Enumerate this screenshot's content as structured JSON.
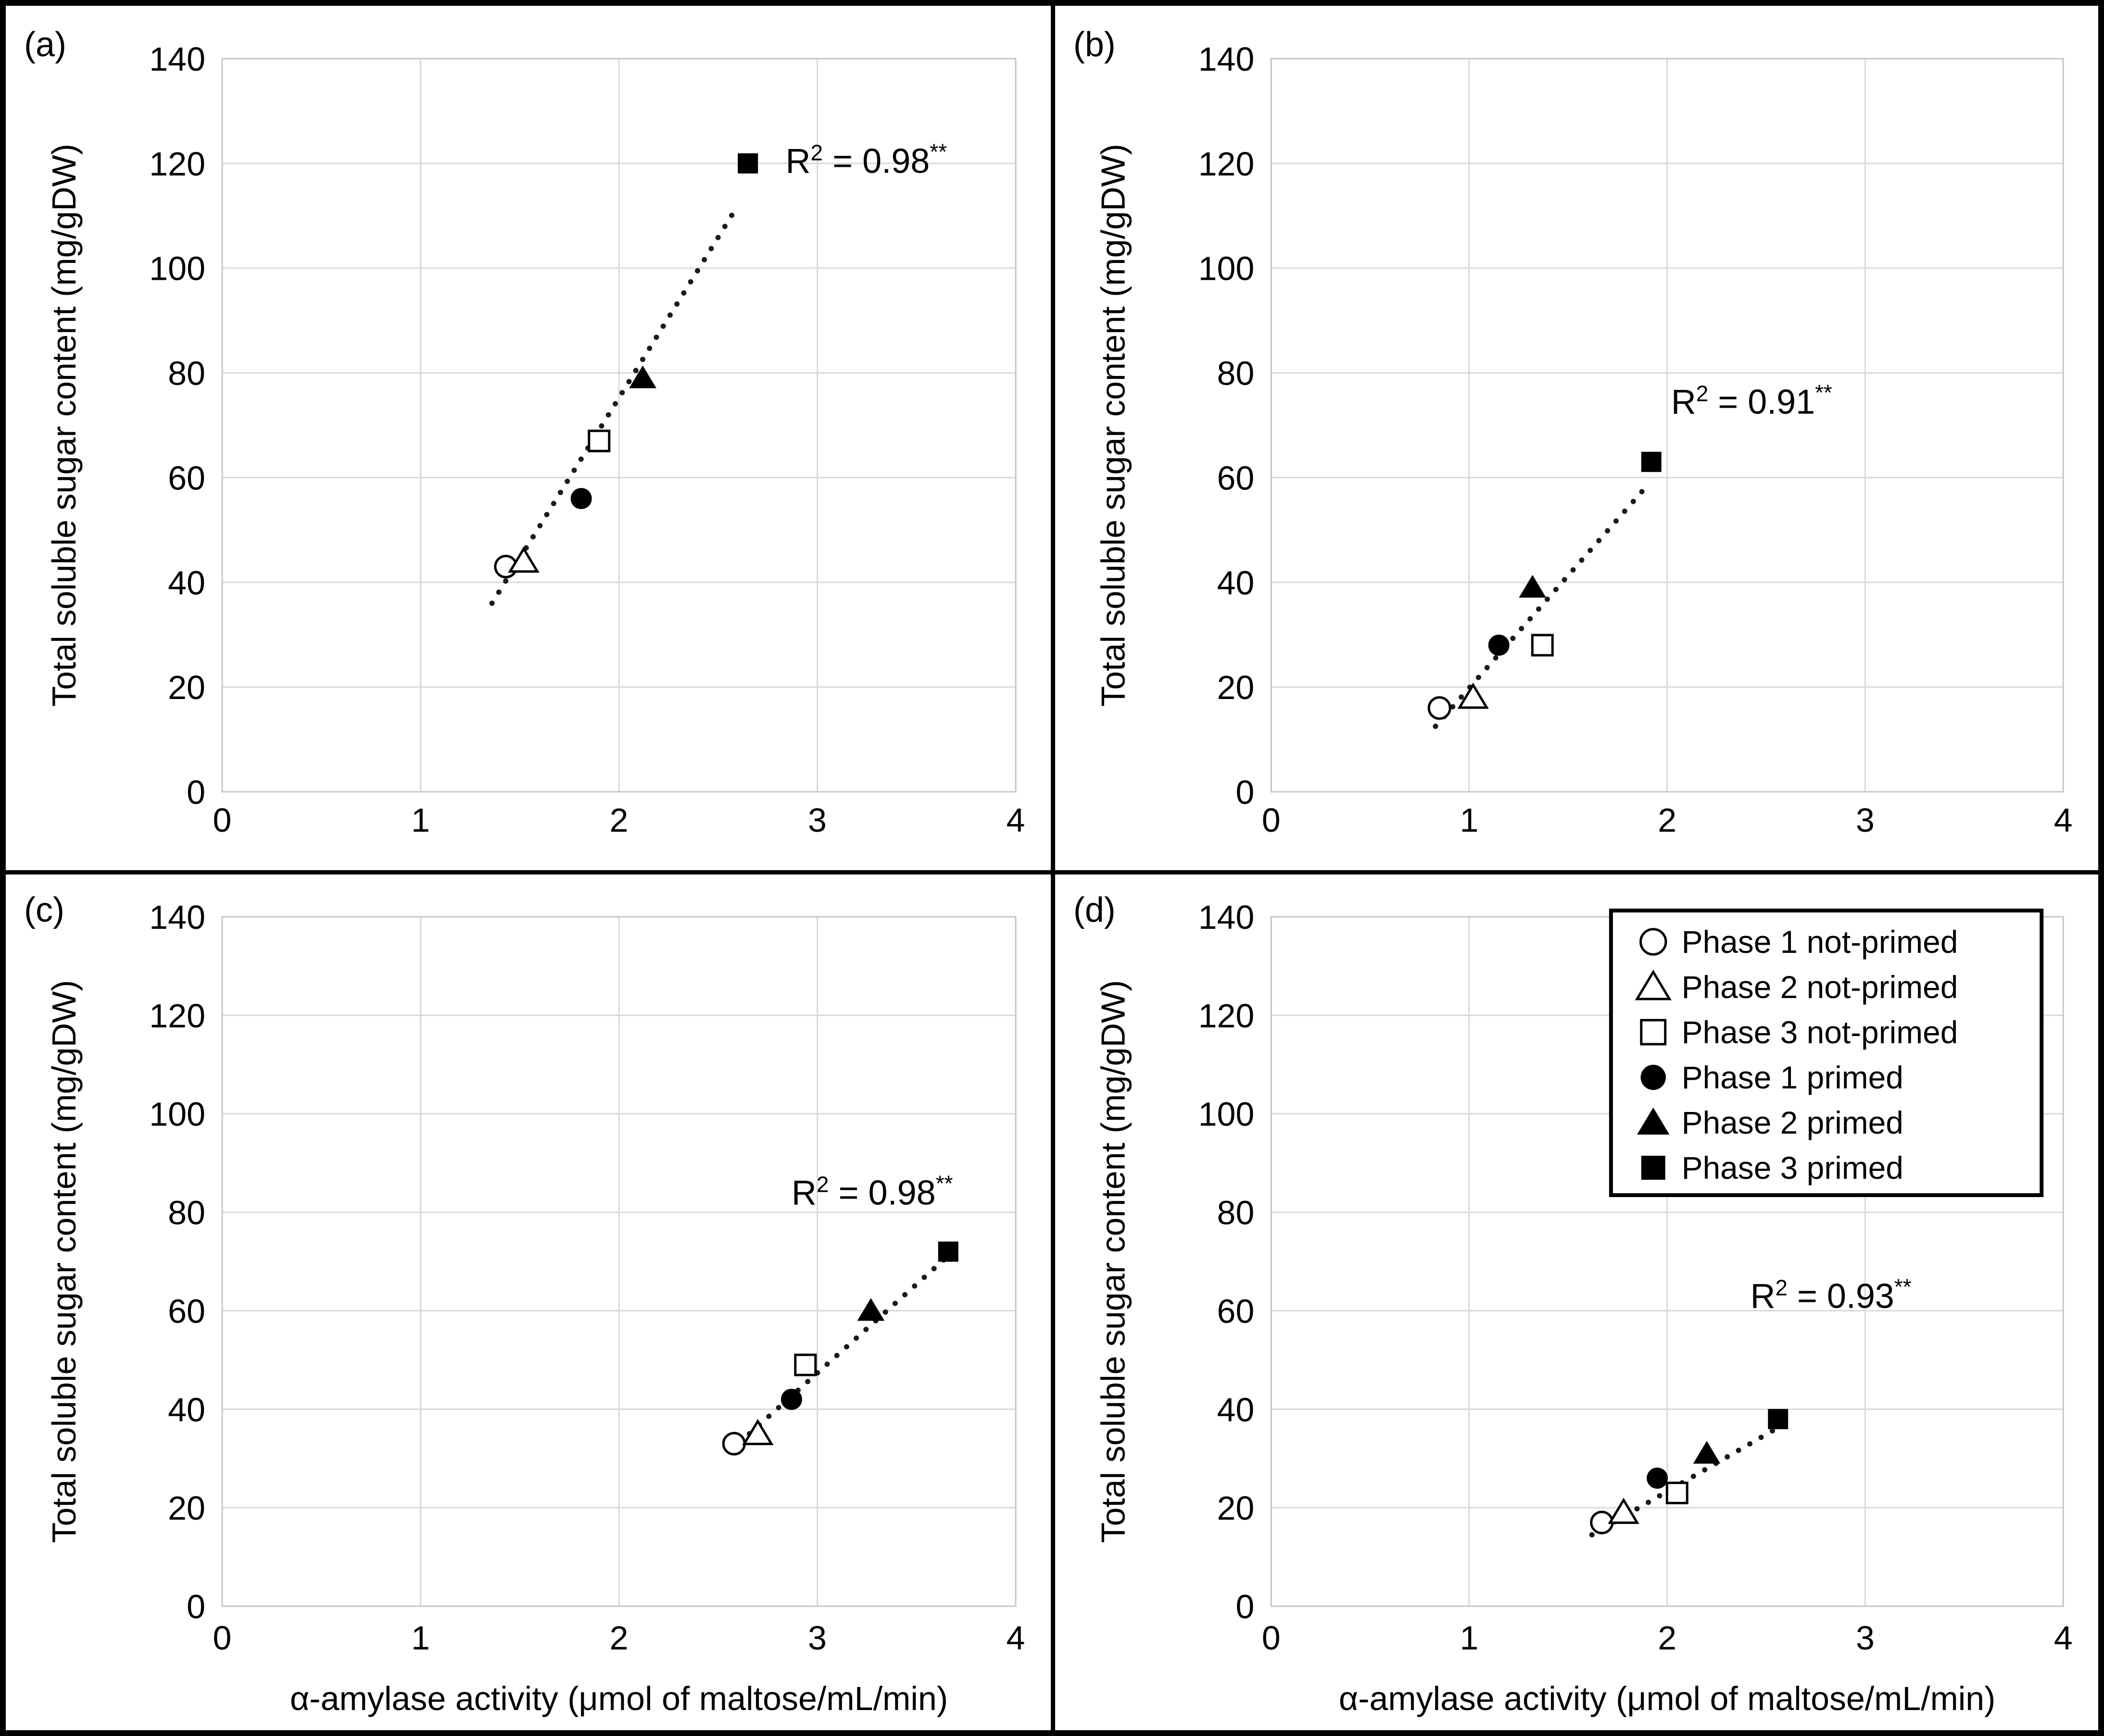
{
  "colors": {
    "background": "#ffffff",
    "figure_border": "#000000",
    "gridline": "#d9d9d9",
    "plot_frame": "#c6c6c6",
    "marker": "#000000",
    "text": "#000000",
    "trendline": "#1a1a1a",
    "legend_border": "#000000",
    "legend_background": "#ffffff"
  },
  "axis": {
    "x_title": "α-amylase activity (μmol of maltose/mL/min)",
    "y_title": "Total soluble sugar content (mg/gDW)",
    "xlim": [
      0,
      4
    ],
    "ylim": [
      0,
      140
    ],
    "x_ticks": [
      0,
      1,
      2,
      3,
      4
    ],
    "y_ticks": [
      0,
      20,
      40,
      60,
      80,
      100,
      120,
      140
    ],
    "grid": true
  },
  "legend": {
    "position": "top-right-of-panel-d",
    "entries": [
      {
        "series": "phase-1-not-primed",
        "marker": "circle",
        "fill": "open",
        "label": "Phase 1 not-primed"
      },
      {
        "series": "phase-2-not-primed",
        "marker": "triangle",
        "fill": "open",
        "label": "Phase 2 not-primed"
      },
      {
        "series": "phase-3-not-primed",
        "marker": "square",
        "fill": "open",
        "label": "Phase 3 not-primed"
      },
      {
        "series": "phase-1-primed",
        "marker": "circle",
        "fill": "filled",
        "label": "Phase 1 primed"
      },
      {
        "series": "phase-2-primed",
        "marker": "triangle",
        "fill": "filled",
        "label": "Phase 2 primed"
      },
      {
        "series": "phase-3-primed",
        "marker": "square",
        "fill": "filled",
        "label": "Phase 3 primed"
      }
    ]
  },
  "chart_data": [
    {
      "type": "scatter",
      "panel": "a",
      "panel_label": "(a)",
      "xlabel": "α-amylase activity (μmol of maltose/mL/min)",
      "ylabel": "Total soluble sugar content (mg/gDW)",
      "show_x_title": false,
      "show_legend": false,
      "r2_value": "0.98",
      "r2_stars": "**",
      "r2_pos": {
        "x": 2.84,
        "y": 120.5
      },
      "trendline": {
        "style": "dotted",
        "x1": 1.36,
        "y1": 36,
        "x2": 2.6,
        "y2": 112
      },
      "points": [
        {
          "series": "phase-1-not-primed",
          "x": 1.43,
          "y": 43
        },
        {
          "series": "phase-2-not-primed",
          "x": 1.52,
          "y": 44
        },
        {
          "series": "phase-3-not-primed",
          "x": 1.9,
          "y": 67
        },
        {
          "series": "phase-1-primed",
          "x": 1.81,
          "y": 56
        },
        {
          "series": "phase-2-primed",
          "x": 2.12,
          "y": 79
        },
        {
          "series": "phase-3-primed",
          "x": 2.65,
          "y": 120
        }
      ]
    },
    {
      "type": "scatter",
      "panel": "b",
      "panel_label": "(b)",
      "xlabel": "α-amylase activity (μmol of maltose/mL/min)",
      "ylabel": "Total soluble sugar content (mg/gDW)",
      "show_x_title": false,
      "show_legend": false,
      "r2_value": "0.91",
      "r2_stars": "**",
      "r2_pos": {
        "x": 2.02,
        "y": 74.5
      },
      "trendline": {
        "style": "dotted",
        "x1": 0.83,
        "y1": 12.5,
        "x2": 1.9,
        "y2": 58.5
      },
      "points": [
        {
          "series": "phase-1-not-primed",
          "x": 0.85,
          "y": 16
        },
        {
          "series": "phase-2-not-primed",
          "x": 1.02,
          "y": 18
        },
        {
          "series": "phase-3-not-primed",
          "x": 1.37,
          "y": 28
        },
        {
          "series": "phase-1-primed",
          "x": 1.15,
          "y": 28
        },
        {
          "series": "phase-2-primed",
          "x": 1.32,
          "y": 39
        },
        {
          "series": "phase-3-primed",
          "x": 1.92,
          "y": 63
        }
      ]
    },
    {
      "type": "scatter",
      "panel": "c",
      "panel_label": "(c)",
      "xlabel": "α-amylase activity (μmol of maltose/mL/min)",
      "ylabel": "Total soluble sugar content (mg/gDW)",
      "show_x_title": true,
      "show_legend": false,
      "r2_value": "0.98",
      "r2_stars": "**",
      "r2_pos": {
        "x": 2.87,
        "y": 84
      },
      "trendline": {
        "style": "dotted",
        "x1": 2.56,
        "y1": 31.5,
        "x2": 3.67,
        "y2": 71.5
      },
      "points": [
        {
          "series": "phase-1-not-primed",
          "x": 2.58,
          "y": 33
        },
        {
          "series": "phase-2-not-primed",
          "x": 2.7,
          "y": 35
        },
        {
          "series": "phase-3-not-primed",
          "x": 2.94,
          "y": 49
        },
        {
          "series": "phase-1-primed",
          "x": 2.87,
          "y": 42
        },
        {
          "series": "phase-2-primed",
          "x": 3.27,
          "y": 60
        },
        {
          "series": "phase-3-primed",
          "x": 3.66,
          "y": 72
        }
      ]
    },
    {
      "type": "scatter",
      "panel": "d",
      "panel_label": "(d)",
      "xlabel": "α-amylase activity (μmol of maltose/mL/min)",
      "ylabel": "Total soluble sugar content (mg/gDW)",
      "show_x_title": true,
      "show_legend": true,
      "r2_value": "0.93",
      "r2_stars": "**",
      "r2_pos": {
        "x": 2.42,
        "y": 63
      },
      "trendline": {
        "style": "dotted",
        "x1": 1.62,
        "y1": 14.5,
        "x2": 2.57,
        "y2": 36.5
      },
      "points": [
        {
          "series": "phase-1-not-primed",
          "x": 1.67,
          "y": 17
        },
        {
          "series": "phase-2-not-primed",
          "x": 1.78,
          "y": 19
        },
        {
          "series": "phase-3-not-primed",
          "x": 2.05,
          "y": 23
        },
        {
          "series": "phase-1-primed",
          "x": 1.95,
          "y": 26
        },
        {
          "series": "phase-2-primed",
          "x": 2.2,
          "y": 31
        },
        {
          "series": "phase-3-primed",
          "x": 2.56,
          "y": 38
        }
      ]
    }
  ]
}
